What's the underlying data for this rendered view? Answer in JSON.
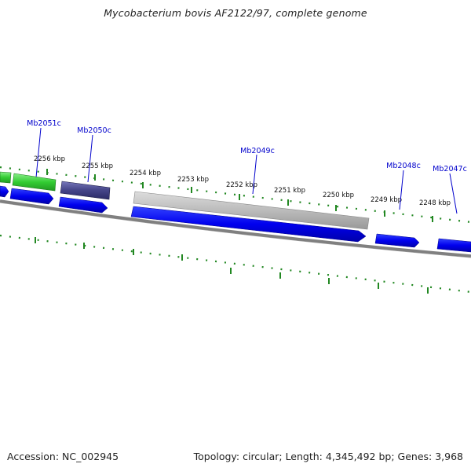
{
  "title": "Mycobacterium bovis AF2122/97, complete genome",
  "footer": {
    "accession": "Accession: NC_002945",
    "topology": "Topology: circular",
    "length": "Length: 4,345,492 bp",
    "genes": "Genes: 3,968"
  },
  "colors": {
    "gene_label": "#0000cc",
    "scale_tick": "#228822",
    "backbone": "#808080",
    "cds_blue": "#0000ee",
    "green_feature": "#33cc33",
    "purple_feature": "#444488",
    "gray_feature": "#b8b8b8"
  },
  "scale_labels": [
    "2256 kbp",
    "2255 kbp",
    "2254 kbp",
    "2253 kbp",
    "2252 kbp",
    "2251 kbp",
    "2250 kbp",
    "2249 kbp",
    "2248 kbp"
  ],
  "gene_labels": [
    "Mb2051c",
    "Mb2050c",
    "Mb2049c",
    "Mb2048c",
    "Mb2047c"
  ],
  "features": {
    "upper_track": [
      {
        "type": "green",
        "color_key": "green_feature"
      },
      {
        "type": "green",
        "color_key": "green_feature"
      },
      {
        "type": "purple",
        "color_key": "purple_feature"
      },
      {
        "type": "gray",
        "color_key": "gray_feature"
      }
    ],
    "cds_track": [
      {
        "type": "cds",
        "color_key": "cds_blue"
      },
      {
        "type": "cds",
        "color_key": "cds_blue"
      },
      {
        "type": "cds",
        "color_key": "cds_blue"
      },
      {
        "type": "cds",
        "color_key": "cds_blue"
      },
      {
        "type": "cds",
        "color_key": "cds_blue"
      },
      {
        "type": "cds",
        "color_key": "cds_blue"
      }
    ]
  }
}
